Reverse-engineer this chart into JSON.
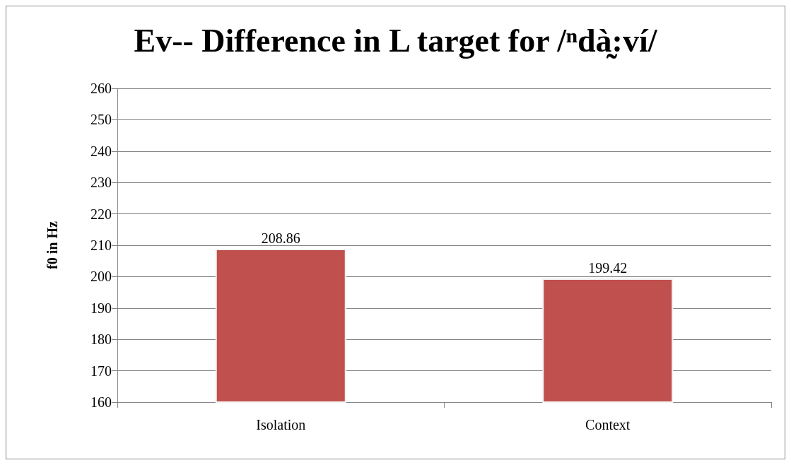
{
  "chart_data": {
    "type": "bar",
    "title": "Ev-- Difference in L target for /ⁿdà̰:ví/",
    "ylabel": "f0 in Hz",
    "categories": [
      "Isolation",
      "Context"
    ],
    "values": [
      208.86,
      199.42
    ],
    "color": "#c0504d",
    "ylim": [
      160,
      260
    ],
    "yticks": [
      160,
      170,
      180,
      190,
      200,
      210,
      220,
      230,
      240,
      250,
      260
    ],
    "grid": "y",
    "data_labels": true
  }
}
